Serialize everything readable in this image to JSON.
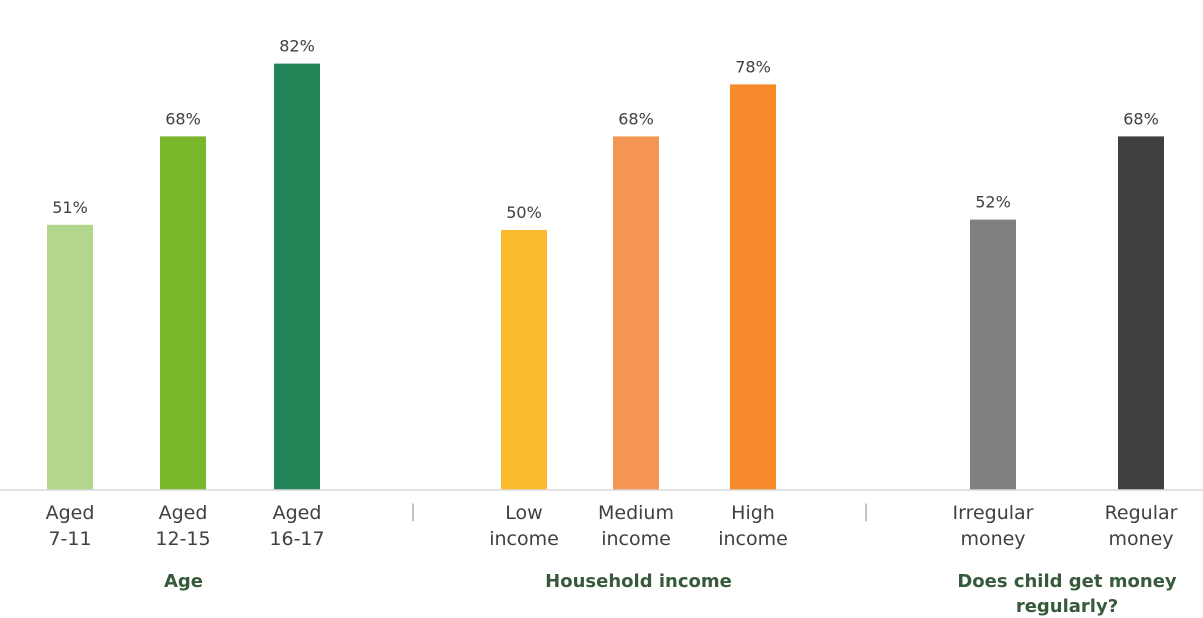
{
  "chart_data": {
    "type": "bar",
    "categories": [
      "Aged\n7-11",
      "Aged\n12-15",
      "Aged\n16-17",
      "Low\nincome",
      "Medium\nincome",
      "High\nincome",
      "Irregular\nmoney",
      "Regular\nmoney"
    ],
    "values": [
      51,
      68,
      82,
      50,
      68,
      78,
      52,
      68
    ],
    "data_labels": [
      "51%",
      "68%",
      "82%",
      "50%",
      "68%",
      "78%",
      "52%",
      "68%"
    ],
    "colors": [
      "#b2d68c",
      "#78b82a",
      "#238557",
      "#fbbb2f",
      "#f49554",
      "#f6892a",
      "#7f7f7f",
      "#404040"
    ],
    "groups": [
      {
        "label": "Age",
        "members": [
          0,
          1,
          2
        ]
      },
      {
        "label": "Household income",
        "members": [
          3,
          4,
          5
        ]
      },
      {
        "label": "Does child get money\nregularly?",
        "members": [
          6,
          7
        ]
      }
    ],
    "separator": "|",
    "ylim": [
      0,
      100
    ],
    "grid": false,
    "legend": "none"
  }
}
